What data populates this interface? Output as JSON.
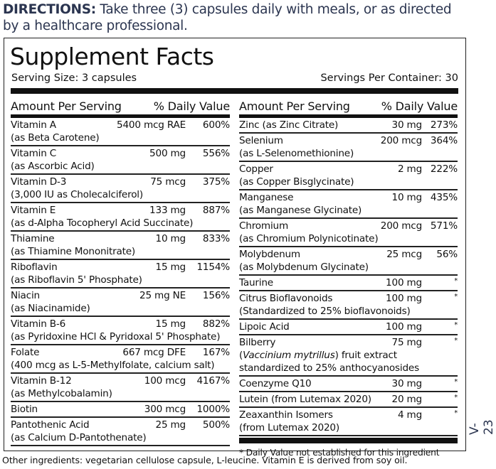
{
  "directions": {
    "label": "DIRECTIONS:",
    "text": " Take three (3) capsules daily with meals, or as directed by a healthcare professional."
  },
  "facts": {
    "title": "Supplement Facts",
    "serving_size": "Serving Size: 3 capsules",
    "servings_per_container": "Servings Per Container: 30",
    "header_amount": "Amount Per Serving",
    "header_dv": "% Daily Value",
    "left_rows": [
      {
        "name": "Vitamin A",
        "amount": "5400 mcg RAE",
        "dv": "600%",
        "sub": "(as Beta Carotene)"
      },
      {
        "name": "Vitamin C",
        "amount": "500 mg",
        "dv": "556%",
        "sub": "(as Ascorbic Acid)"
      },
      {
        "name": "Vitamin D-3",
        "amount": "75 mcg",
        "dv": "375%",
        "sub": "(3,000 IU as Cholecalciferol)"
      },
      {
        "name": "Vitamin E",
        "amount": "133 mg",
        "dv": "887%",
        "sub": "(as d-Alpha Tocopheryl Acid Succinate)"
      },
      {
        "name": "Thiamine",
        "amount": "10 mg",
        "dv": "833%",
        "sub": "(as Thiamine Mononitrate)"
      },
      {
        "name": "Riboflavin",
        "amount": "15 mg",
        "dv": "1154%",
        "sub": "(as Riboflavin 5' Phosphate)"
      },
      {
        "name": "Niacin",
        "amount": "25 mg NE",
        "dv": "156%",
        "sub": "(as Niacinamide)"
      },
      {
        "name": "Vitamin B-6",
        "amount": "15 mg",
        "dv": "882%",
        "sub": "(as Pyridoxine HCl & Pyridoxal 5' Phosphate)"
      },
      {
        "name": "Folate",
        "amount": "667 mcg DFE",
        "dv": "167%",
        "sub": "(400 mcg as L-5-Methylfolate, calcium salt)"
      },
      {
        "name": "Vitamin B-12",
        "amount": "100 mcg",
        "dv": "4167%",
        "sub": "(as Methylcobalamin)"
      },
      {
        "name": "Biotin",
        "amount": "300 mcg",
        "dv": "1000%"
      },
      {
        "name": "Pantothenic Acid",
        "amount": "25 mg",
        "dv": "500%",
        "sub": "(as Calcium D-Pantothenate)"
      }
    ],
    "right_rows": [
      {
        "name": "Zinc (as Zinc Citrate)",
        "amount": "30 mg",
        "dv": "273%"
      },
      {
        "name": "Selenium",
        "amount": "200 mcg",
        "dv": "364%",
        "sub": "(as L-Selenomethionine)"
      },
      {
        "name": "Copper",
        "amount": "2 mg",
        "dv": "222%",
        "sub": "(as Copper Bisglycinate)"
      },
      {
        "name": "Manganese",
        "amount": "10 mg",
        "dv": "435%",
        "sub": "(as Manganese Glycinate)"
      },
      {
        "name": "Chromium",
        "amount": "200 mcg",
        "dv": "571%",
        "sub": "(as Chromium Polynicotinate)"
      },
      {
        "name": "Molybdenum",
        "amount": "25 mcg",
        "dv": "56%",
        "sub": "(as Molybdenum Glycinate)"
      },
      {
        "name": "Taurine",
        "amount": "100 mg",
        "dv": "*"
      },
      {
        "name": "Citrus Bioflavonoids",
        "amount": "100 mg",
        "dv": "*",
        "sub": "(Standardized to 25% bioflavonoids)"
      },
      {
        "name": "Lipoic Acid",
        "amount": "100 mg",
        "dv": "*"
      },
      {
        "name": "Bilberry",
        "amount": "75 mg",
        "dv": "*",
        "sub_pre": "(",
        "sub_italic": "Vaccinium mytrillus",
        "sub_post": ") fruit extract",
        "sub2": "standardized to 25% anthocyanosides"
      },
      {
        "name": "Coenzyme Q10",
        "amount": "30 mg",
        "dv": "*"
      },
      {
        "name": "Lutein (from Lutemax 2020)",
        "amount": "20 mg",
        "dv": "*"
      },
      {
        "name": "Zeaxanthin Isomers",
        "amount": "4 mg",
        "dv": "*",
        "sub": "(from Lutemax 2020)"
      }
    ],
    "footnote": "* Daily Value not established for this ingredient"
  },
  "other_ingredients": "Other ingredients: vegetarian cellulose capsule, L-leucine. Vitamin E is derived from soy oil.",
  "version": "V-23",
  "colors": {
    "directions_text": "#2b3550",
    "rules": "#111111"
  }
}
